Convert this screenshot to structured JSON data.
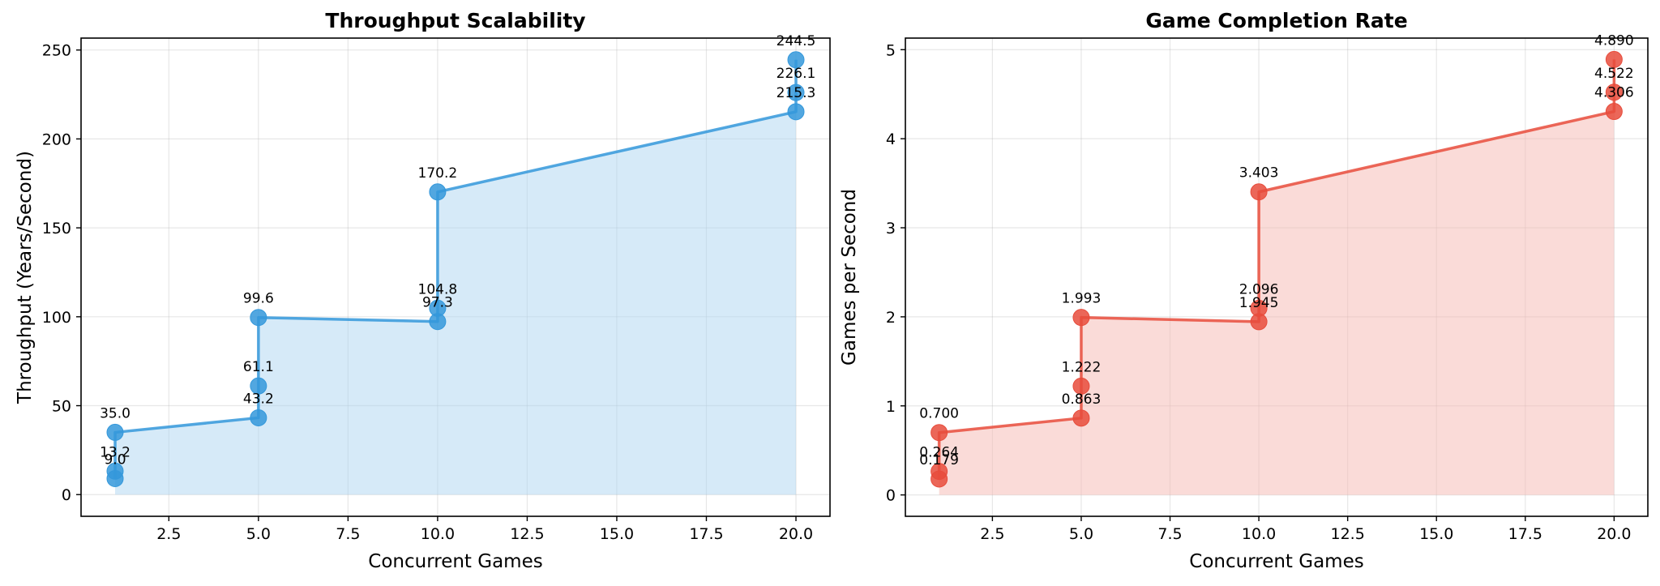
{
  "chart_data": [
    {
      "type": "line",
      "title": "Throughput Scalability",
      "xlabel": "Concurrent Games",
      "ylabel": "Throughput (Years/Second)",
      "xlim": [
        0.05,
        20.95
      ],
      "ylim": [
        -12.2,
        256.7
      ],
      "xticks": [
        2.5,
        5.0,
        7.5,
        10.0,
        12.5,
        15.0,
        17.5,
        20.0
      ],
      "yticks": [
        0,
        50,
        100,
        150,
        200,
        250
      ],
      "grid": true,
      "fill_area": true,
      "color": "#3498db",
      "fill_color": "#aed6f1",
      "points": [
        {
          "x": 1,
          "y": 9.0,
          "label": "9.0"
        },
        {
          "x": 1,
          "y": 13.2,
          "label": "13.2"
        },
        {
          "x": 1,
          "y": 35.0,
          "label": "35.0"
        },
        {
          "x": 5,
          "y": 43.2,
          "label": "43.2"
        },
        {
          "x": 5,
          "y": 61.1,
          "label": "61.1"
        },
        {
          "x": 5,
          "y": 99.6,
          "label": "99.6"
        },
        {
          "x": 10,
          "y": 97.3,
          "label": "97.3"
        },
        {
          "x": 10,
          "y": 104.8,
          "label": "104.8"
        },
        {
          "x": 10,
          "y": 170.2,
          "label": "170.2"
        },
        {
          "x": 20,
          "y": 215.3,
          "label": "215.3"
        },
        {
          "x": 20,
          "y": 226.1,
          "label": "226.1"
        },
        {
          "x": 20,
          "y": 244.5,
          "label": "244.5"
        }
      ]
    },
    {
      "type": "line",
      "title": "Game Completion Rate",
      "xlabel": "Concurrent Games",
      "ylabel": "Games per Second",
      "xlim": [
        0.05,
        20.95
      ],
      "ylim": [
        -0.24,
        5.13
      ],
      "xticks": [
        2.5,
        5.0,
        7.5,
        10.0,
        12.5,
        15.0,
        17.5,
        20.0
      ],
      "yticks": [
        0,
        1,
        2,
        3,
        4,
        5
      ],
      "grid": true,
      "fill_area": true,
      "color": "#e74c3c",
      "fill_color": "#f5b7b1",
      "points": [
        {
          "x": 1,
          "y": 0.179,
          "label": "0.179"
        },
        {
          "x": 1,
          "y": 0.264,
          "label": "0.264"
        },
        {
          "x": 1,
          "y": 0.7,
          "label": "0.700"
        },
        {
          "x": 5,
          "y": 0.863,
          "label": "0.863"
        },
        {
          "x": 5,
          "y": 1.222,
          "label": "1.222"
        },
        {
          "x": 5,
          "y": 1.993,
          "label": "1.993"
        },
        {
          "x": 10,
          "y": 1.945,
          "label": "1.945"
        },
        {
          "x": 10,
          "y": 2.096,
          "label": "2.096"
        },
        {
          "x": 10,
          "y": 3.403,
          "label": "3.403"
        },
        {
          "x": 20,
          "y": 4.306,
          "label": "4.306"
        },
        {
          "x": 20,
          "y": 4.522,
          "label": "4.522"
        },
        {
          "x": 20,
          "y": 4.89,
          "label": "4.890"
        }
      ]
    }
  ]
}
